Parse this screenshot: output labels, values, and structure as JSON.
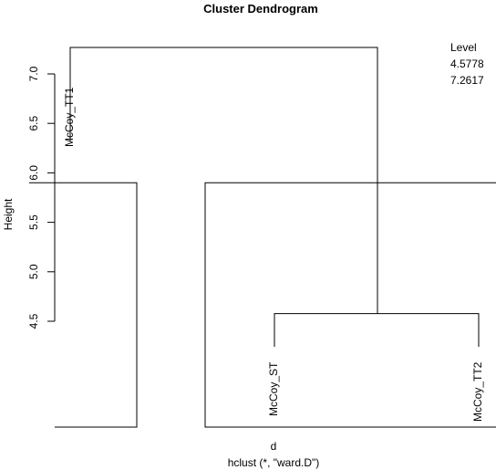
{
  "chart_data": {
    "type": "dendrogram",
    "title": "Cluster Dendrogram",
    "ylabel": "Height",
    "xlabel": "d",
    "sub": "hclust (*, \"ward.D\")",
    "ylim": [
      4.5,
      7.25
    ],
    "yticks": [
      "4.5",
      "5.0",
      "5.5",
      "6.0",
      "6.5",
      "7.0"
    ],
    "ytick_values": [
      4.5,
      5.0,
      5.5,
      6.0,
      6.5,
      7.0
    ],
    "leaves": [
      "McCoy_TT1",
      "McCoy_ST",
      "McCoy_TT2"
    ],
    "merges": [
      {
        "left": "McCoy_ST",
        "right": "McCoy_TT2",
        "height": 4.5778
      },
      {
        "left": "McCoy_TT1",
        "right": "cluster-1",
        "height": 7.2617
      }
    ],
    "level_reference": 5.9,
    "legend": {
      "title": "Level",
      "entries": [
        "4.5778",
        "7.2617"
      ],
      "position": "top-right"
    }
  }
}
